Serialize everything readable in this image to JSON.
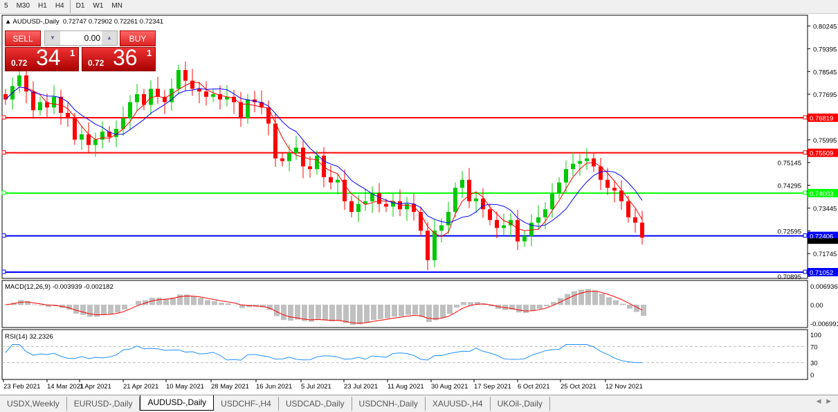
{
  "toolbar": {
    "timeframes": [
      "5",
      "M30",
      "H1",
      "H4",
      "D1",
      "W1",
      "MN"
    ]
  },
  "header": {
    "symbol": "AUDUSD-,Daily",
    "ohlc": "0.72747 0.72902 0.72261 0.72341"
  },
  "trade": {
    "sell_label": "SELL",
    "buy_label": "BUY",
    "lot": "0.00",
    "sell_prefix": "0.72",
    "sell_big": "34",
    "sell_sup": "1",
    "buy_prefix": "0.72",
    "buy_big": "36",
    "buy_sup": "1"
  },
  "colors": {
    "bull": "#00c800",
    "bear": "#ff0000",
    "ma_fast": "#ff0000",
    "ma_slow": "#0000ff",
    "macd_hist": "#c0c0c0",
    "macd_signal": "#ff0000",
    "rsi": "#1e90ff"
  },
  "tabs": [
    "USDX,Weekly",
    "EURUSD-,Daily",
    "AUDUSD-,Daily",
    "USDCHF-,H4",
    "USDCAD-,Daily",
    "USDCNH-,Daily",
    "XAUUSD-,H4",
    "UKOil-,Daily"
  ],
  "active_tab": 2,
  "chart_data": {
    "type": "candlestick",
    "symbol": "AUDUSD-,Daily",
    "price_ticks": [
      "0.80245",
      "0.79395",
      "0.78545",
      "0.77695",
      "0.75995",
      "0.75145",
      "0.74295",
      "0.73445",
      "0.72595",
      "0.71745",
      "0.70895"
    ],
    "ylim": [
      0.7085,
      0.8055
    ],
    "horizontal_lines": [
      {
        "price": "0.76819",
        "color": "#ff0000"
      },
      {
        "price": "0.75509",
        "color": "#ff0000"
      },
      {
        "price": "0.74003",
        "color": "#00ff00"
      },
      {
        "price": "0.72406",
        "color": "#0000ff"
      },
      {
        "price": "0.71052",
        "color": "#0000ff"
      }
    ],
    "current_price": "0.72341",
    "date_labels": [
      "23 Feb 2021",
      "14 Mar 2021",
      "1 Apr 2021",
      "21 Apr 2021",
      "10 May 2021",
      "28 May 2021",
      "16 Jun 2021",
      "5 Jul 2021",
      "23 Jul 2021",
      "11 Aug 2021",
      "30 Aug 2021",
      "17 Sep 2021",
      "6 Oct 2021",
      "25 Oct 2021",
      "12 Nov 2021"
    ],
    "closes": [
      0.775,
      0.78,
      0.784,
      0.778,
      0.771,
      0.774,
      0.772,
      0.776,
      0.77,
      0.768,
      0.76,
      0.762,
      0.758,
      0.76,
      0.763,
      0.761,
      0.764,
      0.768,
      0.774,
      0.777,
      0.773,
      0.779,
      0.776,
      0.774,
      0.779,
      0.786,
      0.782,
      0.779,
      0.778,
      0.776,
      0.777,
      0.775,
      0.776,
      0.774,
      0.768,
      0.775,
      0.774,
      0.772,
      0.766,
      0.753,
      0.752,
      0.755,
      0.757,
      0.75,
      0.749,
      0.754,
      0.746,
      0.744,
      0.745,
      0.737,
      0.733,
      0.736,
      0.737,
      0.74,
      0.736,
      0.735,
      0.737,
      0.734,
      0.736,
      0.733,
      0.726,
      0.715,
      0.726,
      0.728,
      0.733,
      0.742,
      0.745,
      0.737,
      0.738,
      0.734,
      0.73,
      0.727,
      0.728,
      0.73,
      0.722,
      0.724,
      0.729,
      0.731,
      0.734,
      0.74,
      0.744,
      0.749,
      0.751,
      0.752,
      0.753,
      0.75,
      0.745,
      0.742,
      0.741,
      0.737,
      0.731,
      0.729,
      0.7234
    ],
    "macd": {
      "label": "MACD(12,26,9) -0.003939 -0.002182",
      "ticks": [
        "0.006936",
        "0.00",
        "-0.006991"
      ],
      "range": [
        -0.006991,
        0.006936
      ]
    },
    "rsi": {
      "label": "RSI(14) 32.2326",
      "ticks": [
        "100",
        "70",
        "30",
        "0"
      ],
      "levels": [
        70,
        30
      ]
    }
  }
}
